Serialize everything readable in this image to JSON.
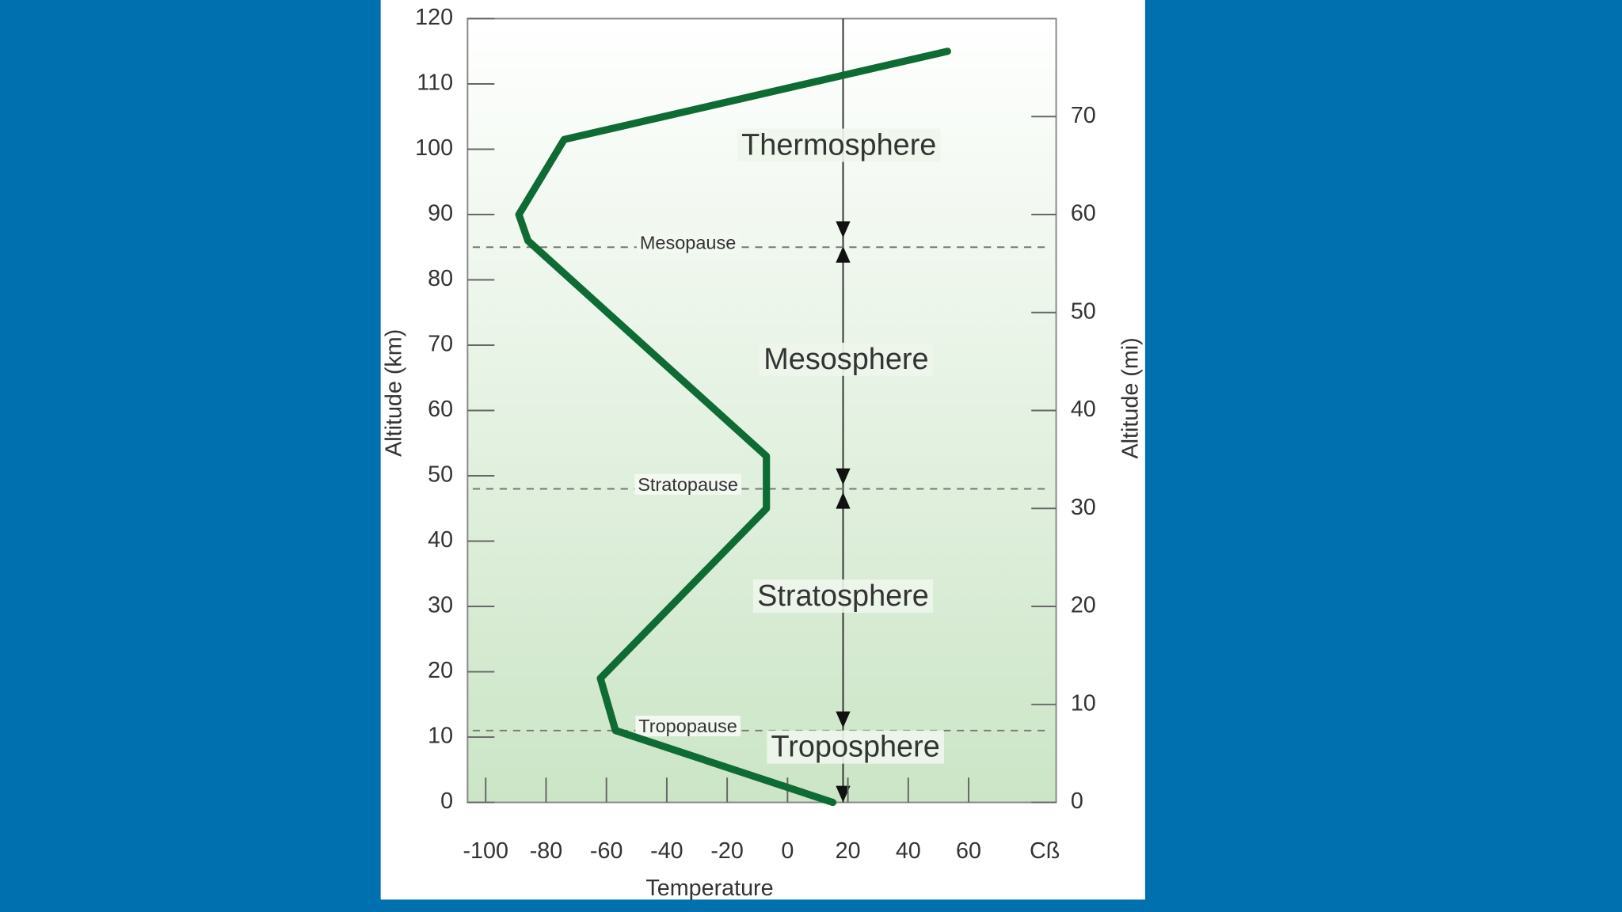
{
  "chart_data": {
    "type": "line",
    "xlabel": "Temperature",
    "xunit": "Cß",
    "ylabel": "Altitude (km)",
    "y2label": "Altitude (mi)",
    "x": [
      15,
      -57,
      -62,
      -7,
      -7,
      -86,
      -89,
      -74,
      53
    ],
    "values": [
      0,
      11,
      19,
      45,
      53,
      86,
      90,
      101.5,
      115
    ],
    "color": "#0e6b34",
    "xlim": [
      -106,
      89
    ],
    "xticks": [
      -100,
      -80,
      -60,
      -40,
      -20,
      0,
      20,
      40,
      60
    ],
    "ylim": [
      0,
      120
    ],
    "yticks": [
      0,
      10,
      20,
      30,
      40,
      50,
      60,
      70,
      80,
      90,
      100,
      110,
      120
    ],
    "y2lim": [
      0,
      80
    ],
    "y2ticks": [
      0,
      10,
      20,
      30,
      40,
      50,
      60,
      70
    ],
    "pauses": [
      {
        "label": "Mesopause",
        "value": 85
      },
      {
        "label": "Stratopause",
        "value": 48
      },
      {
        "label": "Tropopause",
        "value": 11
      }
    ],
    "layers": [
      "Thermosphere",
      "Mesosphere",
      "Stratosphere",
      "Troposphere"
    ]
  }
}
